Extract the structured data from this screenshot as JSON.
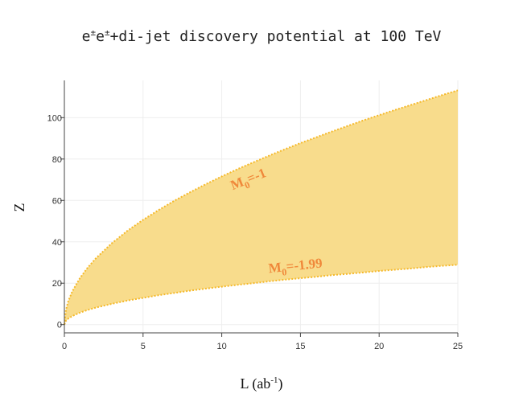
{
  "chart_data": {
    "type": "area",
    "title_base": "e",
    "title_sup1": "±",
    "title_mid": "e",
    "title_sup2": "±",
    "title_rest": "+di-jet discovery potential at 100 TeV",
    "xlabel_base": "L (ab",
    "xlabel_sup": "-1",
    "xlabel_end": ")",
    "ylabel": "Z",
    "xlim": [
      0,
      25
    ],
    "ylim": [
      -4,
      118
    ],
    "x_ticks": [
      0,
      5,
      10,
      15,
      20,
      25
    ],
    "y_ticks": [
      0,
      20,
      40,
      60,
      80,
      100
    ],
    "grid": true,
    "fill_color": "#f8dc8c",
    "line_color": "#f5b92a",
    "annotation_color": "#f0883a",
    "x": [
      0,
      0.1,
      0.25,
      0.5,
      1,
      1.5,
      2,
      3,
      4,
      5,
      6,
      7,
      8,
      9,
      10,
      11,
      12,
      13,
      14,
      15,
      16,
      17,
      18,
      19,
      20,
      21,
      22,
      23,
      24,
      25
    ],
    "series": [
      {
        "values": [
          0,
          7.1,
          11.3,
          16.0,
          22.6,
          27.7,
          32.0,
          39.2,
          45.3,
          50.6,
          55.4,
          59.9,
          64.0,
          67.9,
          71.6,
          75.1,
          78.4,
          81.6,
          84.7,
          87.7,
          90.5,
          93.3,
          96.0,
          98.7,
          101.2,
          103.7,
          106.1,
          108.5,
          110.9,
          113.2
        ]
      },
      {
        "values": [
          0,
          1.8,
          2.9,
          4.1,
          5.8,
          7.1,
          8.2,
          10.0,
          11.6,
          12.9,
          14.2,
          15.3,
          16.4,
          17.4,
          18.3,
          19.2,
          20.0,
          20.9,
          21.7,
          22.4,
          23.1,
          23.9,
          24.5,
          25.2,
          25.9,
          26.5,
          27.1,
          27.8,
          28.4,
          28.9
        ]
      }
    ],
    "annotations": [
      {
        "base": "M",
        "sub": "0",
        "rest": "=-1",
        "x": 10.7,
        "y": 65
      },
      {
        "base": "M",
        "sub": "0",
        "rest": "=-1.99",
        "x": 13.0,
        "y": 25
      }
    ]
  }
}
